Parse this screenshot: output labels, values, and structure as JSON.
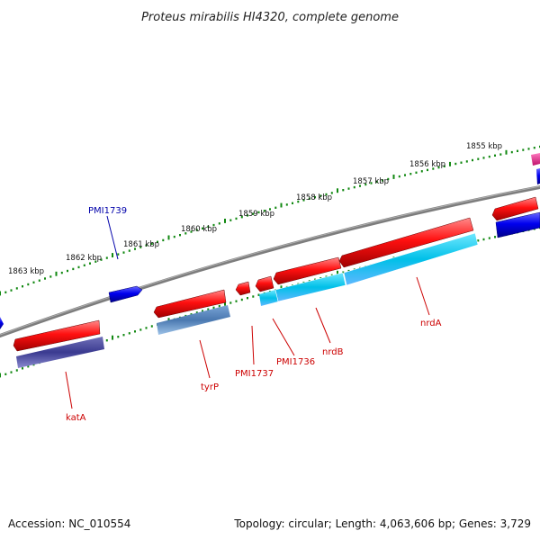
{
  "title": "Proteus mirabilis HI4320, complete genome",
  "accession": "Accession: NC_010554",
  "topology": "Topology: circular; Length: 4,063,606 bp; Genes: 3,729",
  "ruler": [
    "1855 kbp",
    "1856 kbp",
    "1857 kbp",
    "1858 kbp",
    "1859 kbp",
    "1860 kbp",
    "1861 kbp",
    "1862 kbp",
    "1863 kbp"
  ],
  "genes": [
    {
      "name": "katA",
      "color": "#cc0000"
    },
    {
      "name": "tyrP",
      "color": "#cc0000"
    },
    {
      "name": "PMI1737",
      "color": "#cc0000"
    },
    {
      "name": "PMI1736",
      "color": "#cc0000"
    },
    {
      "name": "nrdB",
      "color": "#cc0000"
    },
    {
      "name": "nrdA",
      "color": "#cc0000"
    },
    {
      "name": "PMI1739",
      "color": "#0000aa"
    }
  ],
  "colors": {
    "backbone": "#808080",
    "tick": "#118811",
    "forward_cds": "#0000ee",
    "reverse_cds": "#ee0000",
    "rna": "#e6198c",
    "cog_blue_purple": "#3a3a90",
    "cog_steel": "#4a78b0",
    "cog_cyan": "#00c8e8"
  }
}
